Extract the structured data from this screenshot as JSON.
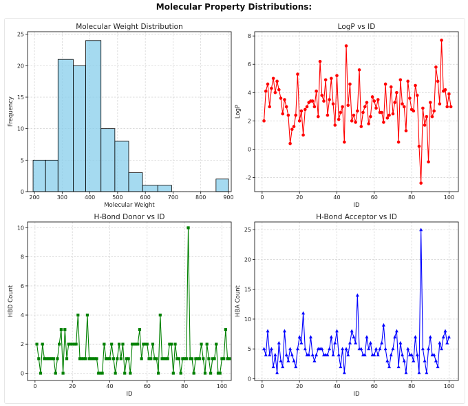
{
  "suptitle": "Molecular Property Distributions:",
  "colors": {
    "hist": "#87CEEB",
    "logp": "#ff0000",
    "hbd": "#008000",
    "hba": "#0000ff"
  },
  "chart_data": [
    {
      "type": "bar",
      "title": "Molecular Weight Distribution",
      "xlabel": "Molecular Weight",
      "ylabel": "Frequency",
      "bin_edges": [
        195,
        240,
        285,
        340,
        385,
        440,
        490,
        540,
        590,
        645,
        695,
        745,
        795,
        855,
        900
      ],
      "values": [
        5,
        5,
        21,
        20,
        24,
        10,
        8,
        3,
        1,
        1,
        0,
        0,
        0,
        2
      ],
      "xlim": [
        175,
        910
      ],
      "ylim": [
        0,
        25.4
      ],
      "xticks": [
        200,
        300,
        400,
        500,
        600,
        700,
        800,
        900
      ],
      "yticks": [
        0,
        5,
        10,
        15,
        20,
        25
      ],
      "grid": true
    },
    {
      "type": "line",
      "title": "LogP vs ID",
      "xlabel": "ID",
      "ylabel": "LogP",
      "marker": "circle",
      "x_start": 1,
      "y": [
        2.0,
        4.1,
        4.6,
        3.0,
        4.3,
        5.0,
        4.0,
        4.8,
        4.2,
        3.6,
        2.5,
        3.5,
        3.0,
        2.4,
        0.4,
        1.4,
        1.6,
        2.4,
        5.3,
        2.0,
        2.7,
        1.0,
        2.8,
        3.0,
        3.3,
        3.4,
        3.4,
        3.0,
        4.1,
        2.3,
        6.2,
        3.8,
        3.4,
        4.9,
        2.4,
        3.5,
        5.0,
        3.2,
        1.7,
        5.2,
        2.1,
        2.6,
        3.0,
        0.5,
        7.3,
        3.1,
        4.6,
        2.0,
        2.4,
        1.9,
        2.7,
        5.6,
        1.6,
        2.6,
        3.0,
        3.3,
        1.8,
        2.3,
        3.7,
        3.4,
        2.9,
        3.5,
        2.6,
        2.6,
        1.9,
        4.6,
        2.2,
        2.4,
        4.4,
        2.5,
        3.3,
        4.0,
        0.5,
        4.9,
        3.2,
        3.0,
        1.3,
        4.8,
        3.6,
        2.8,
        2.7,
        4.5,
        3.8,
        0.2,
        -2.4,
        2.9,
        1.7,
        2.3,
        -0.9,
        3.3,
        2.3,
        2.7,
        5.8,
        4.8,
        3.2,
        7.7,
        4.1,
        4.2,
        3.0,
        3.9,
        3.0
      ],
      "xlim": [
        -4,
        105
      ],
      "ylim": [
        -3.0,
        8.3
      ],
      "xticks": [
        0,
        20,
        40,
        60,
        80,
        100
      ],
      "yticks": [
        -2,
        0,
        2,
        4,
        6,
        8
      ],
      "grid": true
    },
    {
      "type": "line",
      "title": "H-Bond Donor vs ID",
      "xlabel": "ID",
      "ylabel": "HBD Count",
      "marker": "square",
      "x_start": 1,
      "y": [
        2,
        1,
        0,
        2,
        1,
        1,
        1,
        1,
        1,
        1,
        0,
        1,
        2,
        3,
        0,
        3,
        1,
        2,
        2,
        2,
        2,
        2,
        4,
        1,
        1,
        1,
        1,
        4,
        1,
        1,
        1,
        1,
        1,
        0,
        0,
        0,
        2,
        1,
        1,
        1,
        2,
        1,
        0,
        1,
        2,
        1,
        2,
        0,
        1,
        1,
        0,
        2,
        2,
        2,
        2,
        3,
        1,
        2,
        2,
        2,
        1,
        1,
        2,
        1,
        1,
        0,
        4,
        1,
        1,
        1,
        1,
        2,
        2,
        0,
        2,
        1,
        1,
        0,
        1,
        1,
        1,
        10,
        1,
        1,
        0,
        1,
        1,
        1,
        2,
        1,
        0,
        2,
        1,
        0,
        1,
        1,
        2,
        0,
        0,
        1,
        1,
        3,
        1,
        1
      ],
      "xlim": [
        -4,
        105
      ],
      "ylim": [
        -0.5,
        10.4
      ],
      "xticks": [
        0,
        20,
        40,
        60,
        80,
        100
      ],
      "yticks": [
        0,
        2,
        4,
        6,
        8,
        10
      ],
      "grid": true
    },
    {
      "type": "line",
      "title": "H-Bond Acceptor vs ID",
      "xlabel": "ID",
      "ylabel": "HBA Count",
      "marker": "triangle",
      "x_start": 1,
      "y": [
        5,
        4,
        8,
        4,
        5,
        2,
        4,
        1,
        6,
        3,
        2,
        8,
        4,
        3,
        5,
        4,
        3,
        2,
        5,
        7,
        6,
        11,
        5,
        4,
        4,
        7,
        4,
        3,
        4,
        5,
        5,
        5,
        4,
        4,
        4,
        5,
        7,
        4,
        6,
        8,
        4,
        2,
        5,
        1,
        5,
        4,
        6,
        8,
        7,
        6,
        14,
        5,
        5,
        4,
        4,
        7,
        5,
        6,
        4,
        4,
        5,
        4,
        5,
        6,
        9,
        5,
        3,
        2,
        4,
        5,
        7,
        8,
        2,
        6,
        4,
        3,
        1,
        5,
        4,
        4,
        3,
        7,
        4,
        1,
        25,
        5,
        3,
        1,
        5,
        7,
        4,
        4,
        3,
        2,
        6,
        5,
        7,
        8,
        6,
        7
      ],
      "xlim": [
        -4,
        105
      ],
      "ylim": [
        -0.3,
        26.3
      ],
      "xticks": [
        0,
        20,
        40,
        60,
        80,
        100
      ],
      "yticks": [
        0,
        5,
        10,
        15,
        20,
        25
      ],
      "grid": true
    }
  ]
}
